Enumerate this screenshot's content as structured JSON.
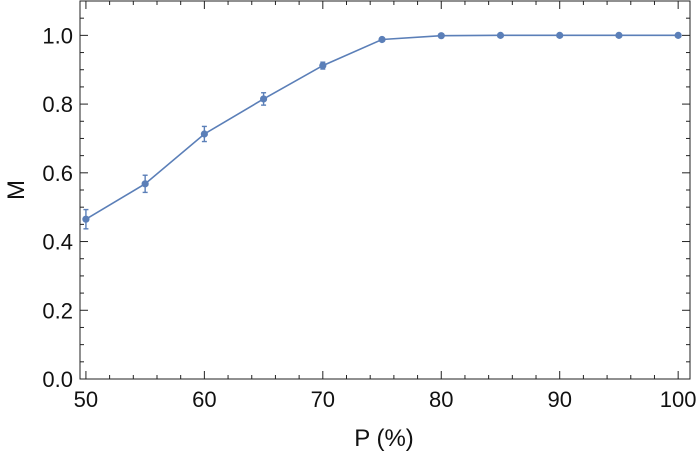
{
  "chart_data": {
    "type": "line",
    "title": "",
    "xlabel": "P (%)",
    "ylabel": "M",
    "xlim": [
      49.5,
      101
    ],
    "ylim": [
      0,
      1.1
    ],
    "x_ticks": [
      50,
      60,
      70,
      80,
      90,
      100
    ],
    "x_tick_labels": [
      "50",
      "60",
      "70",
      "80",
      "90",
      "100"
    ],
    "y_ticks": [
      0.0,
      0.2,
      0.4,
      0.6,
      0.8,
      1.0
    ],
    "y_tick_labels": [
      "0.0",
      "0.2",
      "0.4",
      "0.6",
      "0.8",
      "1.0"
    ],
    "grid": false,
    "legend": "none",
    "series": [
      {
        "x": [
          50,
          55,
          60,
          65,
          70,
          75,
          80,
          85,
          90,
          95,
          100
        ],
        "y": [
          0.465,
          0.568,
          0.713,
          0.815,
          0.912,
          0.988,
          0.999,
          1.0,
          1.0,
          1.0,
          1.0
        ],
        "error": [
          0.028,
          0.025,
          0.022,
          0.018,
          0.01,
          0.004,
          0.002,
          0.0,
          0.0,
          0.0,
          0.0
        ],
        "color": "#5b7fb8"
      }
    ]
  }
}
